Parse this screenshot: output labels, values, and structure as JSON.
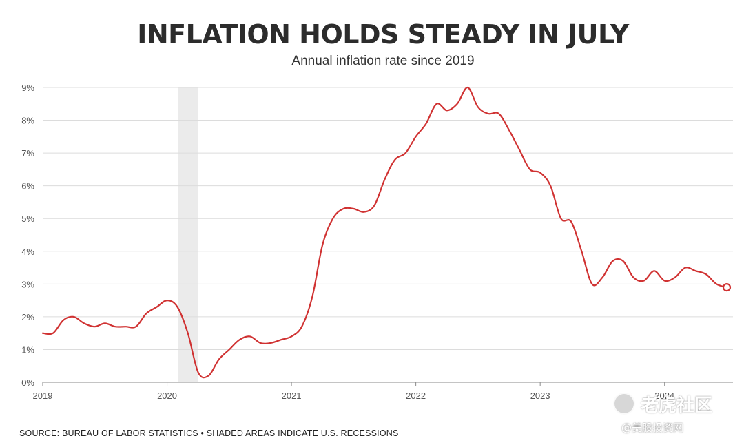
{
  "chart_data": {
    "type": "line",
    "title": "INFLATION HOLDS STEADY IN JULY",
    "subtitle": "Annual inflation rate since 2019",
    "source": "SOURCE: BUREAU OF LABOR STATISTICS • SHADED AREAS INDICATE U.S. RECESSIONS",
    "y_ticks": [
      "0%",
      "1%",
      "2%",
      "3%",
      "4%",
      "5%",
      "6%",
      "7%",
      "8%",
      "9%"
    ],
    "x_ticks": [
      "2019",
      "2020",
      "2021",
      "2022",
      "2023",
      "2024"
    ],
    "ylim": [
      0,
      9
    ],
    "xlim": [
      2019.0,
      2024.55
    ],
    "grid": true,
    "recession": [
      2020.09,
      2020.25
    ],
    "line_color": "#d03232",
    "recession_color": "#ebebeb",
    "series": [
      {
        "x": [
          2019.0,
          2019.083,
          2019.167,
          2019.25,
          2019.333,
          2019.417,
          2019.5,
          2019.583,
          2019.667,
          2019.75,
          2019.833,
          2019.917,
          2020.0,
          2020.083,
          2020.167,
          2020.25,
          2020.333,
          2020.417,
          2020.5,
          2020.583,
          2020.667,
          2020.75,
          2020.833,
          2020.917,
          2021.0,
          2021.083,
          2021.167,
          2021.25,
          2021.333,
          2021.417,
          2021.5,
          2021.583,
          2021.667,
          2021.75,
          2021.833,
          2021.917,
          2022.0,
          2022.083,
          2022.167,
          2022.25,
          2022.333,
          2022.417,
          2022.5,
          2022.583,
          2022.667,
          2022.75,
          2022.833,
          2022.917,
          2023.0,
          2023.083,
          2023.167,
          2023.25,
          2023.333,
          2023.417,
          2023.5,
          2023.583,
          2023.667,
          2023.75,
          2023.833,
          2023.917,
          2024.0,
          2024.083,
          2024.167,
          2024.25,
          2024.333,
          2024.417,
          2024.5
        ],
        "values": [
          1.5,
          1.5,
          1.9,
          2.0,
          1.8,
          1.7,
          1.8,
          1.7,
          1.7,
          1.7,
          2.1,
          2.3,
          2.5,
          2.3,
          1.5,
          0.3,
          0.2,
          0.7,
          1.0,
          1.3,
          1.4,
          1.2,
          1.2,
          1.3,
          1.4,
          1.7,
          2.6,
          4.2,
          5.0,
          5.3,
          5.3,
          5.2,
          5.4,
          6.2,
          6.8,
          7.0,
          7.5,
          7.9,
          8.5,
          8.3,
          8.5,
          9.0,
          8.4,
          8.2,
          8.2,
          7.7,
          7.1,
          6.5,
          6.4,
          6.0,
          5.0,
          4.9,
          4.0,
          3.0,
          3.2,
          3.7,
          3.7,
          3.2,
          3.1,
          3.4,
          3.1,
          3.2,
          3.5,
          3.4,
          3.3,
          3.0,
          2.9
        ]
      }
    ]
  },
  "watermark": {
    "main": "老虎社区",
    "sub": "@美股投资网"
  }
}
